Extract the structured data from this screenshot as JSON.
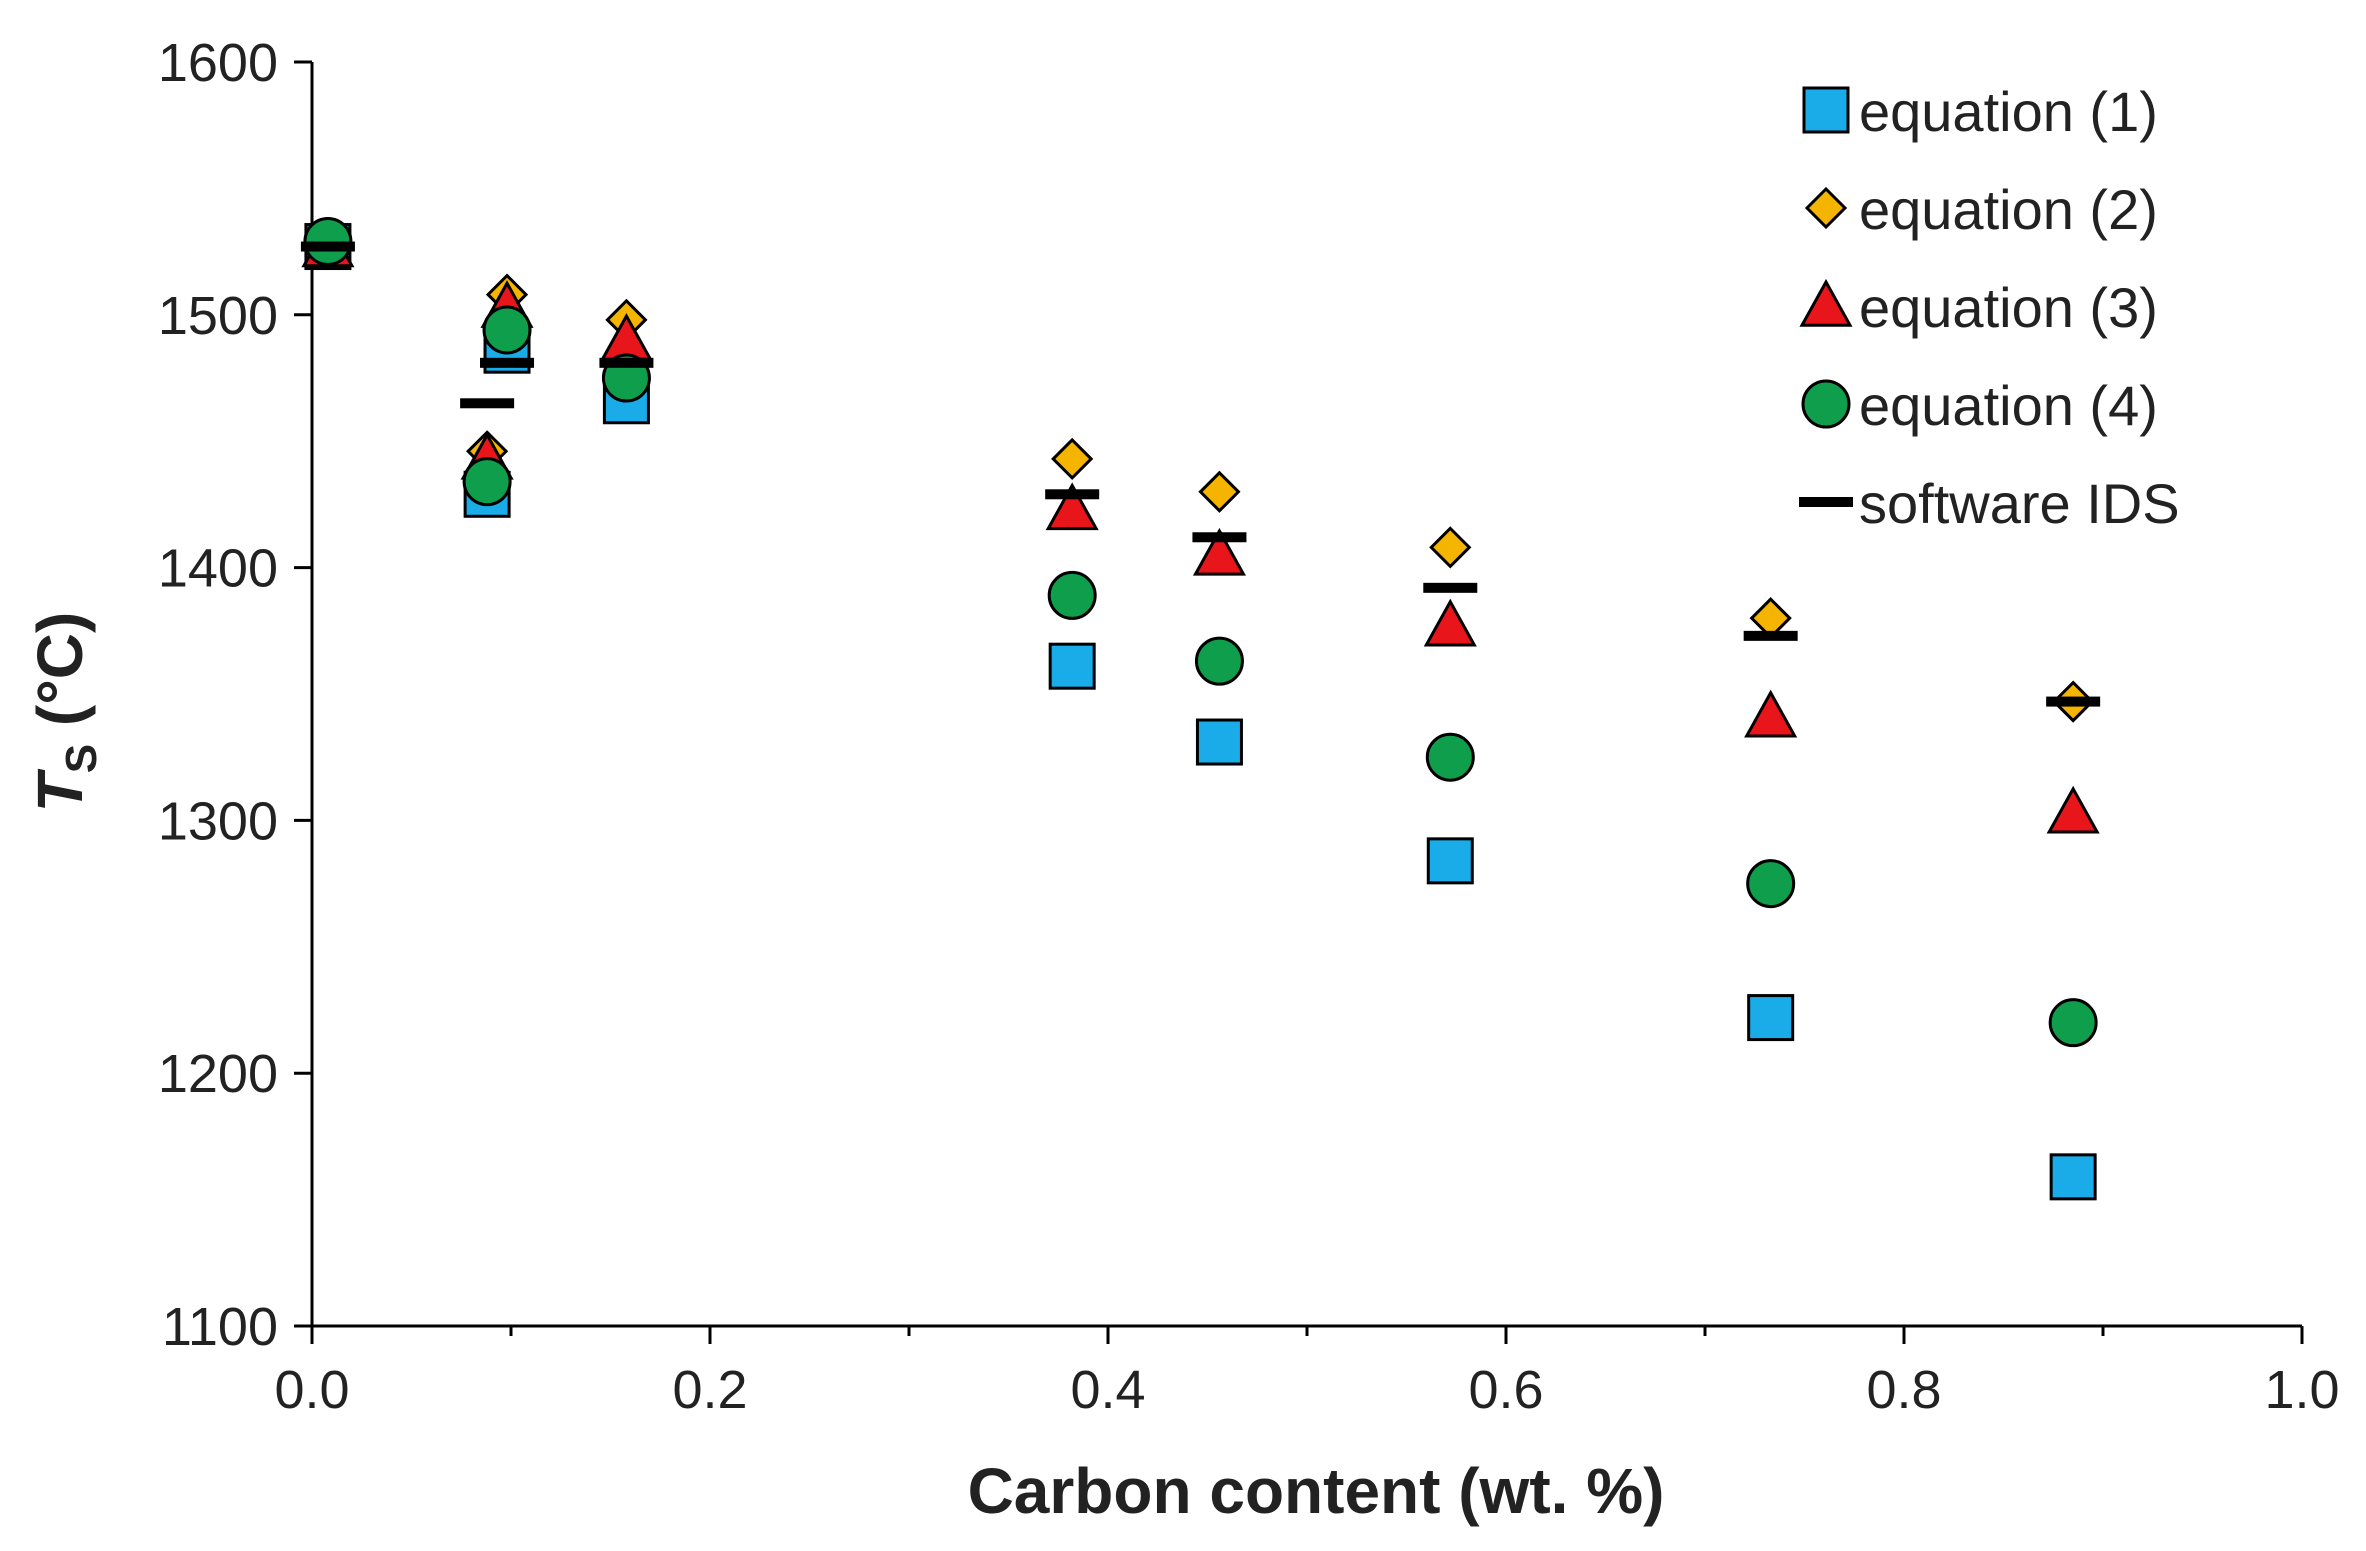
{
  "chart_data": {
    "type": "scatter",
    "title": "",
    "xlabel": "Carbon content (wt. %)",
    "ylabel_main": "T",
    "ylabel_sub": "S",
    "ylabel_unit": " (°C)",
    "xlim": [
      0.0,
      1.0
    ],
    "ylim": [
      1100,
      1600
    ],
    "xticks": [
      "0.0",
      "0.2",
      "0.4",
      "0.6",
      "0.8",
      "1.0"
    ],
    "yticks": [
      "1100",
      "1200",
      "1300",
      "1400",
      "1500",
      "1600"
    ],
    "grid": false,
    "legend_position": "top-right",
    "series": [
      {
        "name": "equation (1)",
        "marker": "square",
        "color": "#1AACE8",
        "x": [
          0.008,
          0.088,
          0.098,
          0.158,
          0.382,
          0.456,
          0.572,
          0.733,
          0.885
        ],
        "y": [
          1527,
          1429,
          1486,
          1466,
          1361,
          1331,
          1284,
          1222,
          1159
        ]
      },
      {
        "name": "equation (2)",
        "marker": "diamond",
        "color": "#F5B400",
        "x": [
          0.008,
          0.088,
          0.098,
          0.158,
          0.382,
          0.456,
          0.572,
          0.733,
          0.885
        ],
        "y": [
          1527,
          1446,
          1508,
          1498,
          1443,
          1430,
          1408,
          1380,
          1347
        ]
      },
      {
        "name": "equation (3)",
        "marker": "triangle",
        "color": "#E8151A",
        "x": [
          0.008,
          0.088,
          0.098,
          0.158,
          0.382,
          0.456,
          0.572,
          0.733,
          0.885
        ],
        "y": [
          1527,
          1443,
          1503,
          1490,
          1423,
          1405,
          1377,
          1341,
          1303
        ]
      },
      {
        "name": "equation (4)",
        "marker": "circle",
        "color": "#0F9E4B",
        "x": [
          0.008,
          0.088,
          0.098,
          0.158,
          0.382,
          0.456,
          0.572,
          0.733,
          0.885
        ],
        "y": [
          1529,
          1434,
          1494,
          1475,
          1389,
          1363,
          1325,
          1275,
          1220
        ]
      },
      {
        "name": "software IDS",
        "marker": "dash",
        "color": "#000000",
        "x": [
          0.008,
          0.088,
          0.098,
          0.158,
          0.382,
          0.456,
          0.572,
          0.733,
          0.885
        ],
        "y": [
          1527,
          1465,
          1481,
          1481,
          1429,
          1412,
          1392,
          1373,
          1347
        ]
      }
    ]
  }
}
